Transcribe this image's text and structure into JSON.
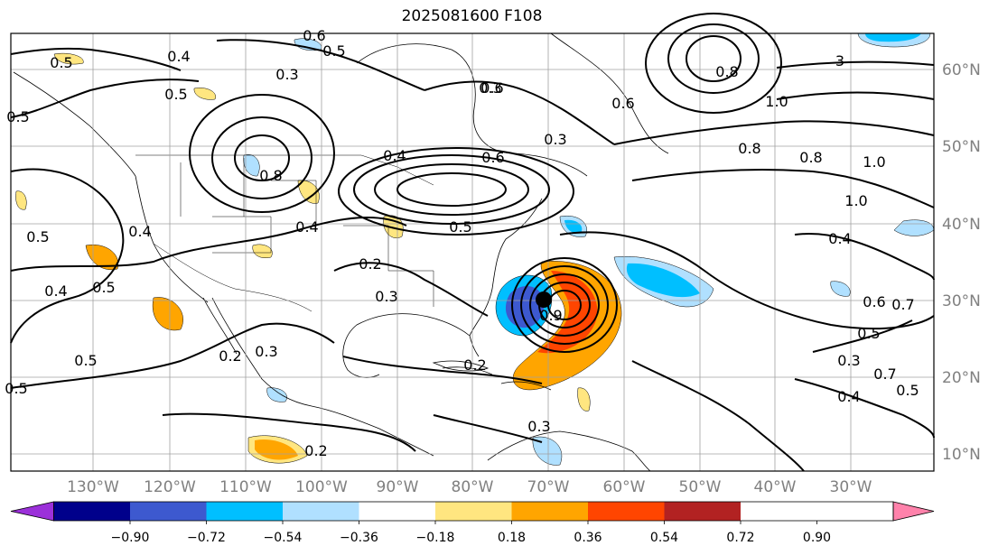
{
  "title": "2025081600 F108",
  "lon_labels": [
    "130°W",
    "120°W",
    "110°W",
    "100°W",
    "90°W",
    "80°W",
    "70°W",
    "60°W",
    "50°W",
    "40°W",
    "30°W"
  ],
  "lat_labels": [
    "60°N",
    "50°N",
    "40°N",
    "30°N",
    "20°N",
    "10°N"
  ],
  "colorbar": {
    "ticks": [
      "−0.90",
      "−0.72",
      "−0.54",
      "−0.36",
      "−0.18",
      "0.18",
      "0.36",
      "0.54",
      "0.72",
      "0.90"
    ],
    "colors": [
      "#9b30d9",
      "#00008b",
      "#3d59cf",
      "#00bfff",
      "#b0e0ff",
      "#ffffff",
      "#ffe680",
      "#ffa500",
      "#ff4500",
      "#b22222",
      "#ff82ab"
    ]
  },
  "contour_labels": [
    "0.5",
    "0.4",
    "0.3",
    "0.5",
    "0.6",
    "0.5",
    "0.3",
    "0.6",
    "0.3",
    "0.8",
    "0.4",
    "0.6",
    "0.5",
    "0.4",
    "0.2",
    "0.3",
    "0.5",
    "0.4",
    "0.5",
    "0.4",
    "0.5",
    "0.2",
    "0.3",
    "0.2",
    "0.2",
    "0.3",
    "0.5",
    "3",
    "1.0",
    "0.8",
    "1.0",
    "0.8",
    "1.0",
    "0.7",
    "0.5",
    "0.4",
    "0.6",
    "0.5",
    "0.7",
    "0.3",
    "0.4",
    "0.5",
    "0.6",
    "0.8",
    "0.9"
  ]
}
